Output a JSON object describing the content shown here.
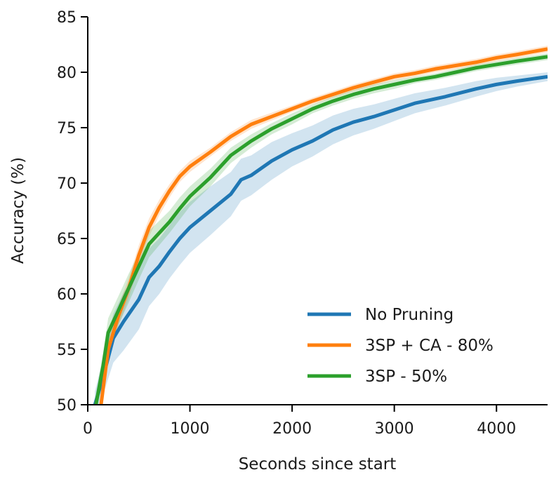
{
  "chart_data": {
    "type": "line",
    "xlabel": "Seconds since start",
    "ylabel": "Accuracy (%)",
    "xlim": [
      0,
      4500
    ],
    "ylim": [
      50,
      85
    ],
    "xticks": [
      0,
      1000,
      2000,
      3000,
      4000
    ],
    "yticks": [
      50,
      55,
      60,
      65,
      70,
      75,
      80,
      85
    ],
    "grid": false,
    "legend_position": "bottom-right",
    "series": [
      {
        "name": "No Pruning",
        "color": "#1f77b4",
        "x": [
          70,
          150,
          250,
          350,
          500,
          600,
          700,
          800,
          900,
          1000,
          1200,
          1400,
          1500,
          1600,
          1800,
          2000,
          2200,
          2400,
          2600,
          2800,
          3000,
          3200,
          3500,
          3800,
          4000,
          4200,
          4500
        ],
        "y": [
          50,
          52.5,
          56,
          57.5,
          59.5,
          61.5,
          62.5,
          63.8,
          65,
          66,
          67.5,
          69,
          70.3,
          70.7,
          72,
          73,
          73.8,
          74.8,
          75.5,
          76,
          76.6,
          77.2,
          77.8,
          78.5,
          78.9,
          79.2,
          79.6
        ],
        "band": [
          1.2,
          1.6,
          2.2,
          2.6,
          2.7,
          2.6,
          2.5,
          2.4,
          2.4,
          2.3,
          2.2,
          2.0,
          1.9,
          1.8,
          1.7,
          1.5,
          1.4,
          1.3,
          1.2,
          1.1,
          1.0,
          0.9,
          0.8,
          0.7,
          0.6,
          0.5,
          0.4
        ]
      },
      {
        "name": "3SP + CA - 80%",
        "color": "#ff7f0e",
        "x": [
          130,
          200,
          300,
          400,
          500,
          600,
          700,
          800,
          900,
          1000,
          1200,
          1400,
          1600,
          1800,
          2000,
          2200,
          2400,
          2600,
          2800,
          3000,
          3200,
          3400,
          3600,
          3800,
          4000,
          4200,
          4500
        ],
        "y": [
          50,
          55,
          58,
          60.5,
          63.5,
          66,
          67.8,
          69.3,
          70.6,
          71.5,
          72.8,
          74.2,
          75.3,
          76,
          76.7,
          77.4,
          78,
          78.6,
          79.1,
          79.6,
          79.9,
          80.3,
          80.6,
          80.9,
          81.3,
          81.6,
          82.1
        ],
        "band": [
          0.8,
          0.8,
          0.9,
          0.9,
          0.9,
          0.8,
          0.7,
          0.6,
          0.5,
          0.5,
          0.4,
          0.4,
          0.4,
          0.35,
          0.3,
          0.3,
          0.3,
          0.3,
          0.3,
          0.3,
          0.3,
          0.3,
          0.3,
          0.3,
          0.3,
          0.3,
          0.3
        ]
      },
      {
        "name": "3SP - 50%",
        "color": "#2ca02c",
        "x": [
          80,
          150,
          200,
          300,
          400,
          500,
          600,
          700,
          800,
          900,
          1000,
          1200,
          1400,
          1600,
          1800,
          2000,
          2200,
          2400,
          2600,
          2800,
          3000,
          3200,
          3400,
          3600,
          3800,
          4000,
          4200,
          4500
        ],
        "y": [
          50,
          53.5,
          56.5,
          58.5,
          60.5,
          62.5,
          64.5,
          65.5,
          66.5,
          67.7,
          68.8,
          70.5,
          72.5,
          73.8,
          74.9,
          75.8,
          76.7,
          77.4,
          78,
          78.5,
          78.9,
          79.3,
          79.6,
          80,
          80.4,
          80.7,
          81,
          81.4
        ],
        "band": [
          1.0,
          1.2,
          1.3,
          1.3,
          1.3,
          1.2,
          1.2,
          1.1,
          1.0,
          1.0,
          0.9,
          0.8,
          0.7,
          0.6,
          0.5,
          0.5,
          0.4,
          0.4,
          0.4,
          0.4,
          0.4,
          0.3,
          0.3,
          0.3,
          0.3,
          0.3,
          0.3,
          0.3
        ]
      }
    ]
  }
}
